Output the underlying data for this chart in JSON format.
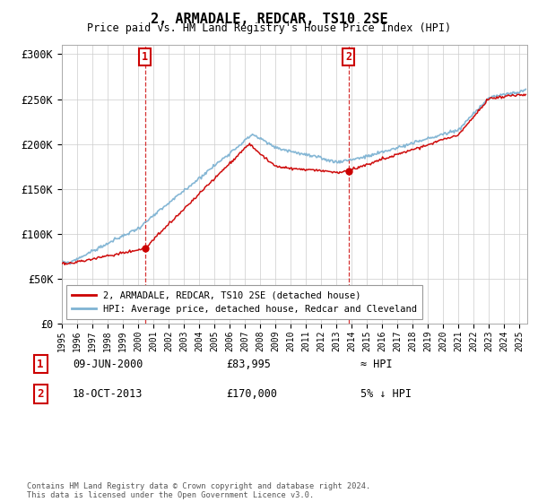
{
  "title": "2, ARMADALE, REDCAR, TS10 2SE",
  "subtitle": "Price paid vs. HM Land Registry's House Price Index (HPI)",
  "ylabel_ticks": [
    "£0",
    "£50K",
    "£100K",
    "£150K",
    "£200K",
    "£250K",
    "£300K"
  ],
  "ytick_values": [
    0,
    50000,
    100000,
    150000,
    200000,
    250000,
    300000
  ],
  "ylim": [
    0,
    310000
  ],
  "xlim_start": 1995.0,
  "xlim_end": 2025.5,
  "sale1_date": 2000.44,
  "sale1_price": 83995,
  "sale1_label": "1",
  "sale2_date": 2013.79,
  "sale2_price": 170000,
  "sale2_label": "2",
  "red_line_color": "#cc0000",
  "blue_line_color": "#7fb3d3",
  "annotation_box_color": "#cc0000",
  "background_color": "#ffffff",
  "grid_color": "#cccccc",
  "legend_label_red": "2, ARMADALE, REDCAR, TS10 2SE (detached house)",
  "legend_label_blue": "HPI: Average price, detached house, Redcar and Cleveland",
  "annotation1_date": "09-JUN-2000",
  "annotation1_price": "£83,995",
  "annotation1_hpi": "≈ HPI",
  "annotation2_date": "18-OCT-2013",
  "annotation2_price": "£170,000",
  "annotation2_hpi": "5% ↓ HPI",
  "footnote": "Contains HM Land Registry data © Crown copyright and database right 2024.\nThis data is licensed under the Open Government Licence v3.0."
}
